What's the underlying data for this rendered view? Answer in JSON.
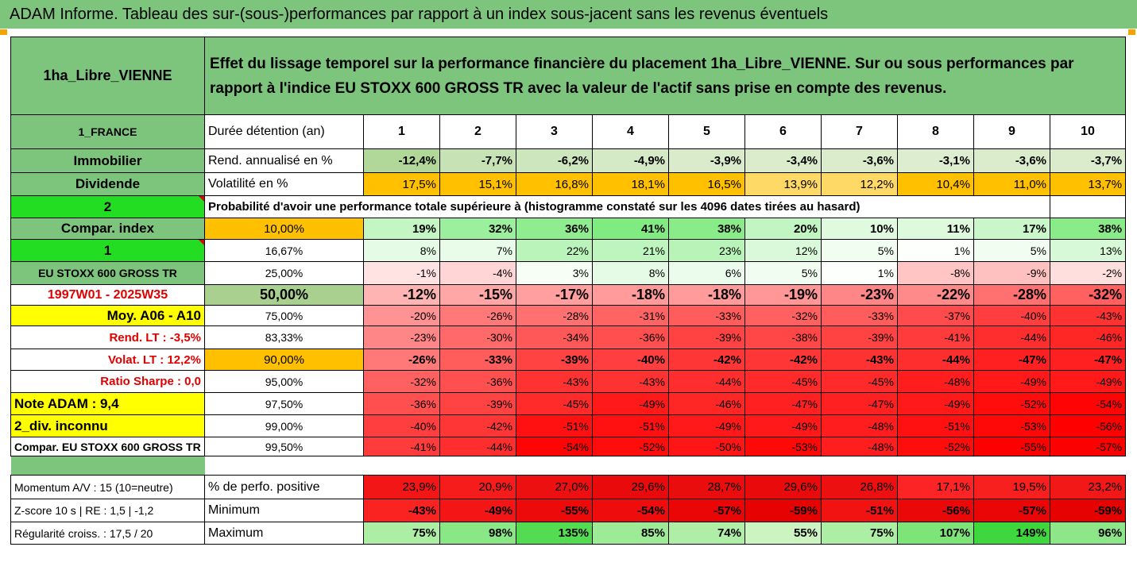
{
  "title": "ADAM Informe. Tableau des sur-(sous-)performances par rapport à un index sous-jacent sans les revenus éventuels",
  "header": {
    "asset": "1ha_Libre_VIENNE",
    "description": "Effet du lissage temporel sur la performance financière du placement 1ha_Libre_VIENNE. Sur ou sous performances par rapport à l'indice EU STOXX 600 GROSS TR avec la valeur de l'actif sans prise en compte des revenus."
  },
  "rows": [
    {
      "left": "1_FRANCE",
      "label": "Durée détention (an)",
      "values": [
        "1",
        "2",
        "3",
        "4",
        "5",
        "6",
        "7",
        "8",
        "9",
        "10"
      ]
    },
    {
      "left": "Immobilier",
      "label": "Rend. annualisé en %",
      "values": [
        "-12,4%",
        "-7,7%",
        "-6,2%",
        "-4,9%",
        "-3,9%",
        "-3,4%",
        "-3,6%",
        "-3,1%",
        "-3,6%",
        "-3,7%"
      ]
    },
    {
      "left": "Dividende",
      "label": "Volatilité en %",
      "values": [
        "17,5%",
        "15,1%",
        "16,8%",
        "18,1%",
        "16,5%",
        "13,9%",
        "12,2%",
        "10,4%",
        "11,0%",
        "13,7%"
      ]
    },
    {
      "left": "2",
      "label": "Probabilité d'avoir une performance totale supérieure à (histogramme constaté sur les 4096 dates tirées au hasard)"
    },
    {
      "left": "Compar. index",
      "label": "10,00%",
      "values": [
        "19%",
        "32%",
        "36%",
        "41%",
        "38%",
        "20%",
        "10%",
        "11%",
        "17%",
        "38%"
      ]
    },
    {
      "left": "1",
      "label": "16,67%",
      "values": [
        "8%",
        "7%",
        "22%",
        "21%",
        "23%",
        "12%",
        "5%",
        "1%",
        "5%",
        "13%"
      ]
    },
    {
      "left": "EU STOXX 600 GROSS TR",
      "label": "25,00%",
      "values": [
        "-1%",
        "-4%",
        "3%",
        "8%",
        "6%",
        "5%",
        "1%",
        "-8%",
        "-9%",
        "-2%"
      ]
    },
    {
      "left": "1997W01 - 2025W35",
      "label": "50,00%",
      "values": [
        "-12%",
        "-15%",
        "-17%",
        "-18%",
        "-18%",
        "-19%",
        "-23%",
        "-22%",
        "-28%",
        "-32%"
      ]
    },
    {
      "left": "Moy. A06 - A10",
      "label": "75,00%",
      "values": [
        "-20%",
        "-26%",
        "-28%",
        "-31%",
        "-33%",
        "-32%",
        "-33%",
        "-37%",
        "-40%",
        "-43%"
      ]
    },
    {
      "left": "Rend. LT :   -3,5%",
      "label": "83,33%",
      "values": [
        "-23%",
        "-30%",
        "-34%",
        "-36%",
        "-39%",
        "-38%",
        "-39%",
        "-41%",
        "-44%",
        "-46%"
      ]
    },
    {
      "left": "Volat. LT :   12,2%",
      "label": "90,00%",
      "values": [
        "-26%",
        "-33%",
        "-39%",
        "-40%",
        "-42%",
        "-42%",
        "-43%",
        "-44%",
        "-47%",
        "-47%"
      ]
    },
    {
      "left": "Ratio Sharpe :    0,0",
      "label": "95,00%",
      "values": [
        "-32%",
        "-36%",
        "-43%",
        "-43%",
        "-44%",
        "-45%",
        "-45%",
        "-48%",
        "-49%",
        "-49%"
      ]
    },
    {
      "left": "Note ADAM : 9,4",
      "label": "97,50%",
      "values": [
        "-36%",
        "-39%",
        "-45%",
        "-49%",
        "-46%",
        "-47%",
        "-47%",
        "-49%",
        "-52%",
        "-54%"
      ]
    },
    {
      "left": "2_div. inconnu",
      "label": "99,00%",
      "values": [
        "-40%",
        "-42%",
        "-51%",
        "-51%",
        "-49%",
        "-49%",
        "-48%",
        "-51%",
        "-53%",
        "-56%"
      ]
    },
    {
      "left": "Compar. EU STOXX 600 GROSS TR",
      "label": "99,50%",
      "values": [
        "-41%",
        "-44%",
        "-54%",
        "-52%",
        "-50%",
        "-53%",
        "-48%",
        "-52%",
        "-55%",
        "-57%"
      ]
    },
    {
      "left": "Momentum A/V : 15 (10=neutre)",
      "label": "% de perfo. positive",
      "values": [
        "23,9%",
        "20,9%",
        "27,0%",
        "29,6%",
        "28,7%",
        "29,6%",
        "26,8%",
        "17,1%",
        "19,5%",
        "23,2%"
      ]
    },
    {
      "left": "Z-score 10 s  |  RE : 1,5  |  -1,2",
      "label": "Minimum",
      "values": [
        "-43%",
        "-49%",
        "-55%",
        "-54%",
        "-57%",
        "-59%",
        "-51%",
        "-56%",
        "-57%",
        "-59%"
      ]
    },
    {
      "left": "Régularité croiss. : 17,5 / 20",
      "label": "Maximum",
      "values": [
        "75%",
        "98%",
        "135%",
        "85%",
        "74%",
        "55%",
        "75%",
        "107%",
        "149%",
        "96%"
      ]
    }
  ],
  "colors": {
    "header_green": "#7dc47d",
    "yellow": "#ffff00",
    "lime": "#22dd22",
    "orange": "#ffc000",
    "red_text": "#e00000"
  }
}
